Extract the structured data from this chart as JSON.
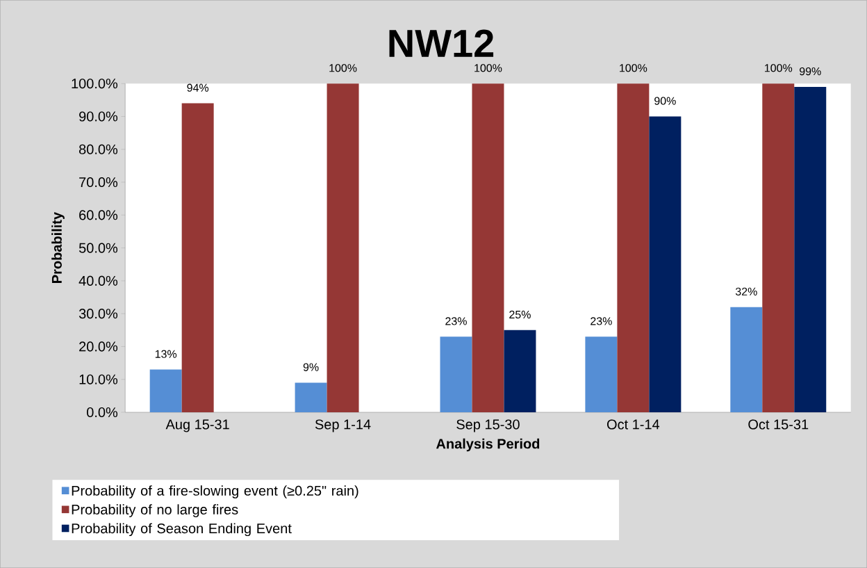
{
  "chart_data": {
    "type": "bar",
    "title": "NW12",
    "xlabel": "Analysis Period",
    "ylabel": "Probability",
    "categories": [
      "Aug 15-31",
      "Sep 1-14",
      "Sep 15-30",
      "Oct 1-14",
      "Oct 15-31"
    ],
    "series": [
      {
        "name": "Probability of a fire-slowing event (≥0.25\" rain)",
        "color": "#558ed5",
        "values": [
          13,
          9,
          23,
          23,
          32
        ],
        "value_labels": [
          "13%",
          "9%",
          "23%",
          "23%",
          "32%"
        ]
      },
      {
        "name": "Probability of no large fires",
        "color": "#953735",
        "values": [
          94,
          100,
          100,
          100,
          100
        ],
        "value_labels": [
          "94%",
          "100%",
          "100%",
          "100%",
          "100%"
        ]
      },
      {
        "name": "Probability of Season Ending Event",
        "color": "#002060",
        "values": [
          null,
          null,
          25,
          90,
          99
        ],
        "value_labels": [
          null,
          null,
          "25%",
          "90%",
          "99%"
        ]
      }
    ],
    "ylim": [
      0,
      100
    ],
    "yticks": [
      {
        "value": 0,
        "label": "0.0%"
      },
      {
        "value": 10,
        "label": "10.0%"
      },
      {
        "value": 20,
        "label": "20.0%"
      },
      {
        "value": 30,
        "label": "30.0%"
      },
      {
        "value": 40,
        "label": "40.0%"
      },
      {
        "value": 50,
        "label": "50.0%"
      },
      {
        "value": 60,
        "label": "60.0%"
      },
      {
        "value": 70,
        "label": "70.0%"
      },
      {
        "value": 80,
        "label": "80.0%"
      },
      {
        "value": 90,
        "label": "90.0%"
      },
      {
        "value": 100,
        "label": "100.0%"
      }
    ],
    "grid": false,
    "legend": "bottom"
  }
}
